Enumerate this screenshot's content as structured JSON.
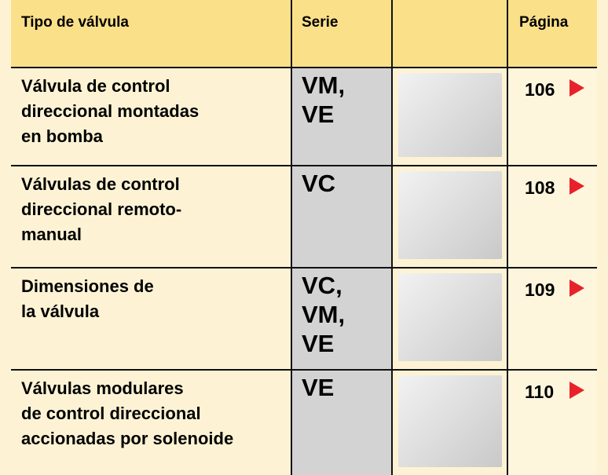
{
  "header": {
    "columns": [
      "Tipo de válvula",
      "Serie",
      "Página"
    ]
  },
  "rows": [
    {
      "type": [
        "Válvula de control",
        "direccional montadas",
        "en bomba"
      ],
      "series": [
        "VM,",
        "VE"
      ],
      "page": 106
    },
    {
      "type": [
        "Válvulas de control",
        "direccional remoto-",
        "manual"
      ],
      "series": [
        "VC"
      ],
      "page": 108
    },
    {
      "type": [
        "Dimensiones de",
        "la válvula"
      ],
      "series": [
        "VC,",
        "VM,",
        "VE"
      ],
      "page": 109
    },
    {
      "type": [
        "Válvulas modulares",
        "de control direccional",
        "accionadas por solenoide"
      ],
      "series": [
        "VE"
      ],
      "page": 110
    }
  ]
}
